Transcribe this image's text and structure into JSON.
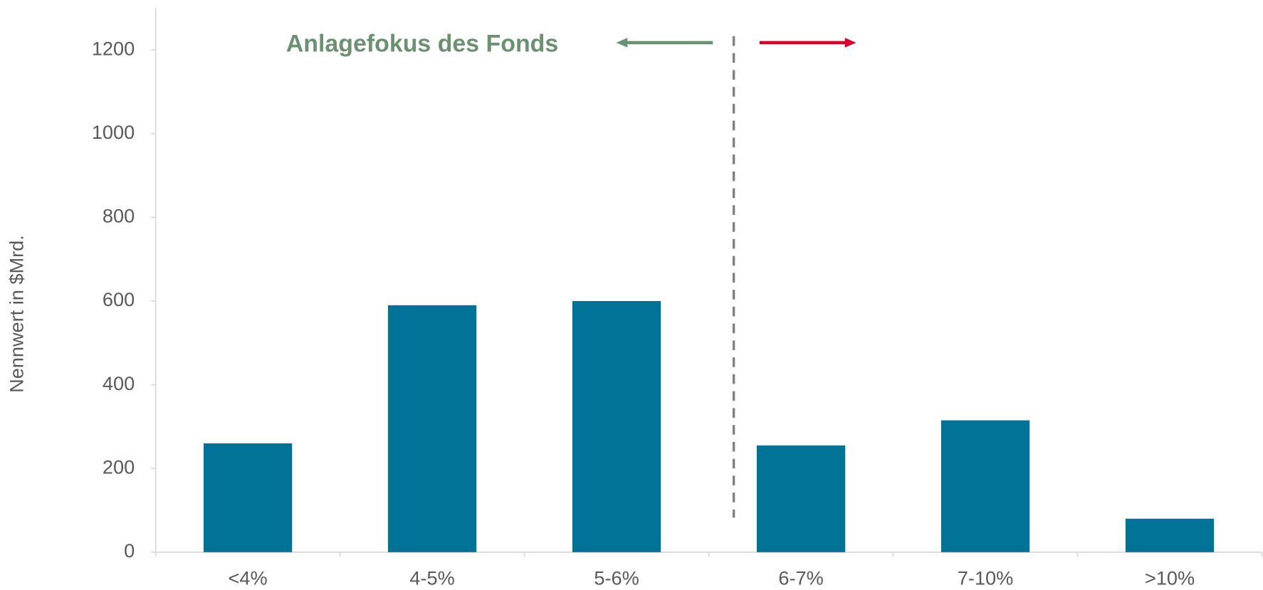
{
  "chart_data": {
    "type": "bar",
    "y_label": "Nennwert in $Mrd.",
    "annotation": "Anlagefokus des Fonds",
    "categories": [
      "<4%",
      "4-5%",
      "5-6%",
      "6-7%",
      "7-10%",
      ">10%"
    ],
    "values": [
      260,
      590,
      600,
      255,
      315,
      80
    ],
    "color": "#007396",
    "ylim": [
      0,
      1300
    ],
    "yticks": [
      0,
      200,
      400,
      600,
      800,
      1000,
      1200
    ]
  }
}
